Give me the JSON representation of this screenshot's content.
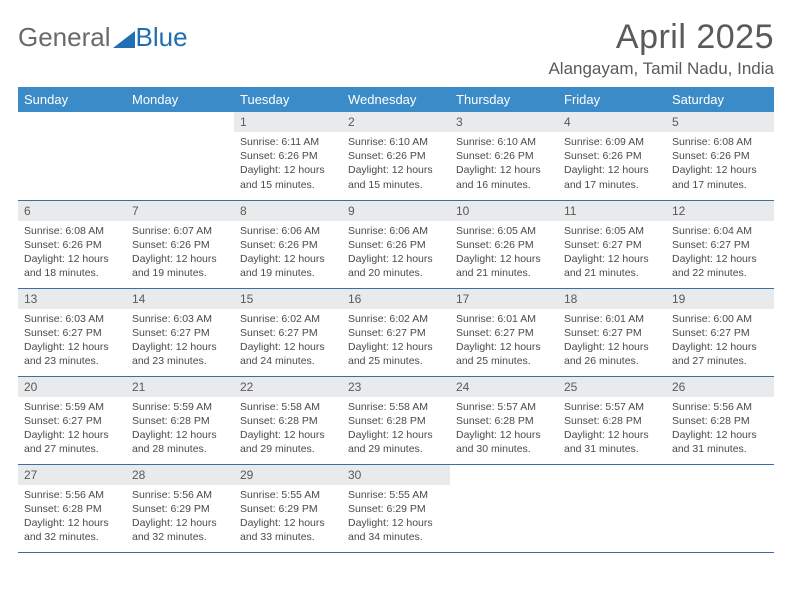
{
  "brand": {
    "part1": "General",
    "part2": "Blue"
  },
  "title": "April 2025",
  "location": "Alangayam, Tamil Nadu, India",
  "colors": {
    "header_bg": "#3b8bc9",
    "header_fg": "#ffffff",
    "daynum_bg": "#e9eaec",
    "row_border": "#3b6fa0",
    "brand_blue": "#1f6fb2"
  },
  "weekdays": [
    "Sunday",
    "Monday",
    "Tuesday",
    "Wednesday",
    "Thursday",
    "Friday",
    "Saturday"
  ],
  "weeks": [
    [
      null,
      null,
      {
        "n": "1",
        "sr": "6:11 AM",
        "ss": "6:26 PM",
        "dl": "12 hours and 15 minutes."
      },
      {
        "n": "2",
        "sr": "6:10 AM",
        "ss": "6:26 PM",
        "dl": "12 hours and 15 minutes."
      },
      {
        "n": "3",
        "sr": "6:10 AM",
        "ss": "6:26 PM",
        "dl": "12 hours and 16 minutes."
      },
      {
        "n": "4",
        "sr": "6:09 AM",
        "ss": "6:26 PM",
        "dl": "12 hours and 17 minutes."
      },
      {
        "n": "5",
        "sr": "6:08 AM",
        "ss": "6:26 PM",
        "dl": "12 hours and 17 minutes."
      }
    ],
    [
      {
        "n": "6",
        "sr": "6:08 AM",
        "ss": "6:26 PM",
        "dl": "12 hours and 18 minutes."
      },
      {
        "n": "7",
        "sr": "6:07 AM",
        "ss": "6:26 PM",
        "dl": "12 hours and 19 minutes."
      },
      {
        "n": "8",
        "sr": "6:06 AM",
        "ss": "6:26 PM",
        "dl": "12 hours and 19 minutes."
      },
      {
        "n": "9",
        "sr": "6:06 AM",
        "ss": "6:26 PM",
        "dl": "12 hours and 20 minutes."
      },
      {
        "n": "10",
        "sr": "6:05 AM",
        "ss": "6:26 PM",
        "dl": "12 hours and 21 minutes."
      },
      {
        "n": "11",
        "sr": "6:05 AM",
        "ss": "6:27 PM",
        "dl": "12 hours and 21 minutes."
      },
      {
        "n": "12",
        "sr": "6:04 AM",
        "ss": "6:27 PM",
        "dl": "12 hours and 22 minutes."
      }
    ],
    [
      {
        "n": "13",
        "sr": "6:03 AM",
        "ss": "6:27 PM",
        "dl": "12 hours and 23 minutes."
      },
      {
        "n": "14",
        "sr": "6:03 AM",
        "ss": "6:27 PM",
        "dl": "12 hours and 23 minutes."
      },
      {
        "n": "15",
        "sr": "6:02 AM",
        "ss": "6:27 PM",
        "dl": "12 hours and 24 minutes."
      },
      {
        "n": "16",
        "sr": "6:02 AM",
        "ss": "6:27 PM",
        "dl": "12 hours and 25 minutes."
      },
      {
        "n": "17",
        "sr": "6:01 AM",
        "ss": "6:27 PM",
        "dl": "12 hours and 25 minutes."
      },
      {
        "n": "18",
        "sr": "6:01 AM",
        "ss": "6:27 PM",
        "dl": "12 hours and 26 minutes."
      },
      {
        "n": "19",
        "sr": "6:00 AM",
        "ss": "6:27 PM",
        "dl": "12 hours and 27 minutes."
      }
    ],
    [
      {
        "n": "20",
        "sr": "5:59 AM",
        "ss": "6:27 PM",
        "dl": "12 hours and 27 minutes."
      },
      {
        "n": "21",
        "sr": "5:59 AM",
        "ss": "6:28 PM",
        "dl": "12 hours and 28 minutes."
      },
      {
        "n": "22",
        "sr": "5:58 AM",
        "ss": "6:28 PM",
        "dl": "12 hours and 29 minutes."
      },
      {
        "n": "23",
        "sr": "5:58 AM",
        "ss": "6:28 PM",
        "dl": "12 hours and 29 minutes."
      },
      {
        "n": "24",
        "sr": "5:57 AM",
        "ss": "6:28 PM",
        "dl": "12 hours and 30 minutes."
      },
      {
        "n": "25",
        "sr": "5:57 AM",
        "ss": "6:28 PM",
        "dl": "12 hours and 31 minutes."
      },
      {
        "n": "26",
        "sr": "5:56 AM",
        "ss": "6:28 PM",
        "dl": "12 hours and 31 minutes."
      }
    ],
    [
      {
        "n": "27",
        "sr": "5:56 AM",
        "ss": "6:28 PM",
        "dl": "12 hours and 32 minutes."
      },
      {
        "n": "28",
        "sr": "5:56 AM",
        "ss": "6:29 PM",
        "dl": "12 hours and 32 minutes."
      },
      {
        "n": "29",
        "sr": "5:55 AM",
        "ss": "6:29 PM",
        "dl": "12 hours and 33 minutes."
      },
      {
        "n": "30",
        "sr": "5:55 AM",
        "ss": "6:29 PM",
        "dl": "12 hours and 34 minutes."
      },
      null,
      null,
      null
    ]
  ],
  "labels": {
    "sunrise": "Sunrise:",
    "sunset": "Sunset:",
    "daylight": "Daylight:"
  }
}
